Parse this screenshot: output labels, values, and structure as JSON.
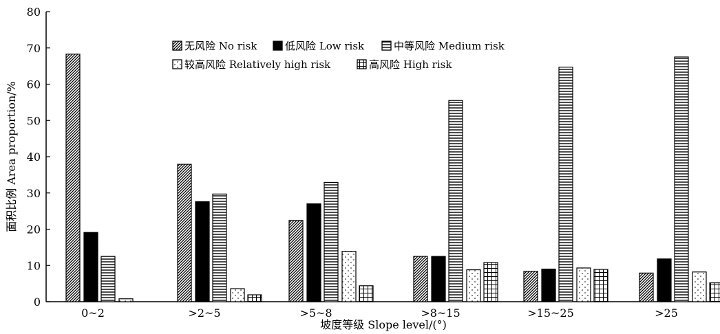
{
  "chart_data": {
    "type": "bar",
    "xlabel": "坡度等级 Slope level/(°)",
    "ylabel": "面积比例 Area proportion/%",
    "ylim": [
      0,
      80
    ],
    "yticks": [
      0,
      10,
      20,
      30,
      40,
      50,
      60,
      70,
      80
    ],
    "categories": [
      "0~2",
      ">2~5",
      ">5~8",
      ">8~15",
      ">15~25",
      ">25"
    ],
    "series": [
      {
        "name": "无风险 No risk",
        "pattern": "diagonal",
        "values": [
          68.3,
          37.9,
          22.4,
          12.5,
          8.4,
          7.9
        ]
      },
      {
        "name": "低风险 Low risk",
        "pattern": "solid",
        "values": [
          19.1,
          27.6,
          27.0,
          12.5,
          9.0,
          11.8
        ]
      },
      {
        "name": "中等风险 Medium risk",
        "pattern": "hlines",
        "values": [
          12.5,
          29.7,
          32.9,
          55.5,
          64.7,
          67.5
        ]
      },
      {
        "name": "较高风险 Relatively high risk",
        "pattern": "dots",
        "values": [
          0.8,
          3.6,
          13.9,
          8.8,
          9.3,
          8.2
        ]
      },
      {
        "name": "高风险 High risk",
        "pattern": "grid",
        "values": [
          0.0,
          1.9,
          4.4,
          10.8,
          8.9,
          5.2
        ]
      }
    ],
    "legend_position": "top-center",
    "grid": false
  }
}
